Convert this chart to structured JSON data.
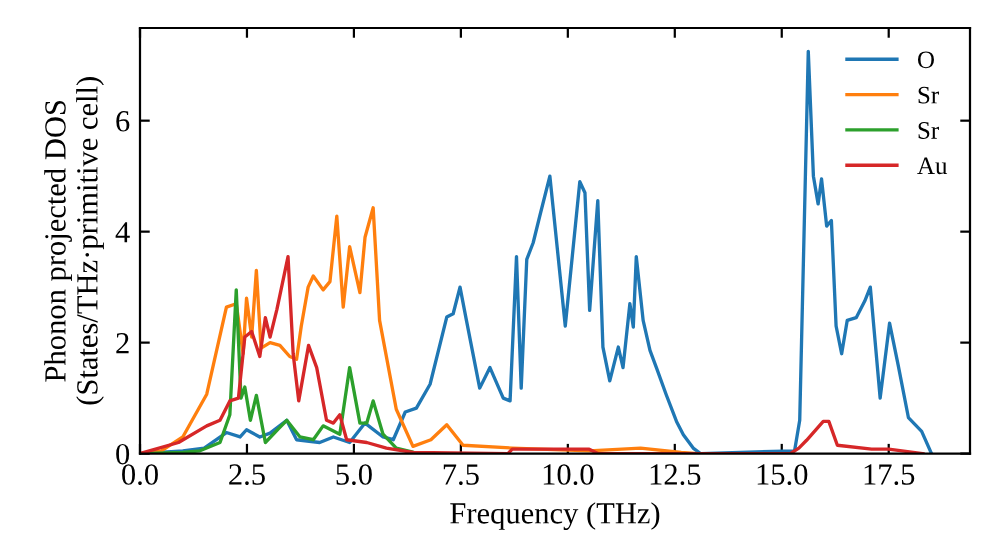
{
  "chart_data": {
    "type": "line",
    "xlabel": "Frequency (THz)",
    "ylabel": "Phonon projected DOS\n(States/THz·primitive cell)",
    "xlim": [
      0,
      19.4
    ],
    "ylim": [
      0,
      7.67
    ],
    "xticks": [
      {
        "value": 0,
        "label": "0.0"
      },
      {
        "value": 2.5,
        "label": "2.5"
      },
      {
        "value": 5,
        "label": "5.0"
      },
      {
        "value": 7.5,
        "label": "7.5"
      },
      {
        "value": 10,
        "label": "10.0"
      },
      {
        "value": 12.5,
        "label": "12.5"
      },
      {
        "value": 15,
        "label": "15.0"
      },
      {
        "value": 17.5,
        "label": "17.5"
      }
    ],
    "yticks": [
      0,
      2,
      4,
      6
    ],
    "grid": false,
    "legend": "top right",
    "marker": "none",
    "line_style": "solid",
    "series": [
      {
        "name": "O",
        "color": "#1f77b4",
        "x": [
          0,
          1.0,
          1.5,
          2.02,
          2.34,
          2.49,
          2.8,
          3.04,
          3.43,
          3.66,
          4.2,
          4.52,
          4.9,
          5.26,
          5.68,
          5.92,
          6.2,
          6.46,
          6.78,
          7.17,
          7.32,
          7.48,
          7.63,
          7.94,
          8.18,
          8.49,
          8.65,
          8.8,
          8.91,
          9.04,
          9.19,
          9.35,
          9.58,
          9.94,
          10.28,
          10.4,
          10.51,
          10.7,
          10.82,
          10.98,
          11.18,
          11.29,
          11.45,
          11.53,
          11.6,
          11.76,
          11.92,
          12.07,
          12.3,
          12.54,
          12.7,
          12.93,
          13.1,
          15.3,
          15.42,
          15.62,
          15.74,
          15.85,
          15.93,
          16.05,
          16.16,
          16.27,
          16.4,
          16.53,
          16.74,
          16.94,
          17.07,
          17.3,
          17.52,
          17.72,
          17.96,
          18.27,
          18.5
        ],
        "values": [
          0,
          0.05,
          0.1,
          0.38,
          0.3,
          0.43,
          0.3,
          0.37,
          0.6,
          0.25,
          0.2,
          0.3,
          0.2,
          0.55,
          0.3,
          0.25,
          0.75,
          0.82,
          1.25,
          2.46,
          2.52,
          3.0,
          2.4,
          1.18,
          1.55,
          1.0,
          0.95,
          3.55,
          1.18,
          3.5,
          3.8,
          4.3,
          5.0,
          2.3,
          4.9,
          4.7,
          2.58,
          4.56,
          1.92,
          1.31,
          1.92,
          1.55,
          2.7,
          2.28,
          3.55,
          2.4,
          1.86,
          1.55,
          1.06,
          0.58,
          0.34,
          0.1,
          0,
          0.05,
          0.6,
          7.25,
          5.0,
          4.5,
          4.95,
          4.1,
          4.2,
          2.3,
          1.8,
          2.4,
          2.45,
          2.75,
          3.0,
          1.0,
          2.35,
          1.6,
          0.65,
          0.4,
          0
        ]
      },
      {
        "name": "Sr",
        "color": "#ff7f0e",
        "x": [
          0,
          0.5,
          1.0,
          1.56,
          2.02,
          2.25,
          2.41,
          2.49,
          2.61,
          2.72,
          2.83,
          3.04,
          3.27,
          3.5,
          3.66,
          3.77,
          3.93,
          4.05,
          4.28,
          4.44,
          4.6,
          4.75,
          4.9,
          5.14,
          5.26,
          5.45,
          5.6,
          5.99,
          6.38,
          6.8,
          7.17,
          7.55,
          8.7,
          10.5,
          11.7,
          12.65,
          13.0
        ],
        "values": [
          0,
          0.05,
          0.3,
          1.07,
          2.64,
          2.7,
          1.8,
          2.8,
          2.1,
          3.3,
          1.9,
          2.0,
          1.95,
          1.75,
          1.7,
          2.3,
          3.0,
          3.2,
          2.95,
          3.1,
          4.28,
          2.64,
          3.73,
          2.9,
          3.9,
          4.43,
          2.4,
          0.8,
          0.13,
          0.25,
          0.52,
          0.15,
          0.1,
          0.05,
          0.1,
          0.02,
          0
        ]
      },
      {
        "name": "Sr",
        "color": "#2ca02c",
        "x": [
          0,
          1.0,
          1.4,
          1.87,
          2.1,
          2.25,
          2.36,
          2.45,
          2.58,
          2.72,
          2.93,
          3.24,
          3.43,
          3.74,
          4.05,
          4.28,
          4.67,
          4.9,
          5.14,
          5.3,
          5.45,
          5.68,
          5.99,
          6.4,
          7.0
        ],
        "values": [
          0,
          0.02,
          0.05,
          0.2,
          0.7,
          2.95,
          1.0,
          1.2,
          0.6,
          1.05,
          0.2,
          0.45,
          0.6,
          0.3,
          0.25,
          0.5,
          0.35,
          1.55,
          0.55,
          0.55,
          0.95,
          0.35,
          0.1,
          0.02,
          0
        ]
      },
      {
        "name": "Au",
        "color": "#d62728",
        "x": [
          0,
          0.9,
          1.56,
          1.87,
          2.1,
          2.3,
          2.45,
          2.61,
          2.8,
          2.93,
          3.04,
          3.2,
          3.46,
          3.58,
          3.71,
          3.94,
          4.13,
          4.36,
          4.52,
          4.67,
          4.83,
          5.3,
          5.76,
          6.38,
          8.6,
          8.7,
          10.5,
          10.7,
          15.2,
          15.4,
          15.58,
          15.97,
          16.1,
          16.3,
          17.1,
          17.5,
          18.3
        ],
        "values": [
          0,
          0.2,
          0.5,
          0.6,
          0.95,
          1.0,
          2.1,
          2.2,
          1.75,
          2.45,
          2.1,
          2.6,
          3.55,
          1.8,
          0.95,
          1.95,
          1.55,
          0.6,
          0.55,
          0.7,
          0.25,
          0.2,
          0.1,
          0.02,
          0,
          0.08,
          0.08,
          0,
          0,
          0.1,
          0.24,
          0.58,
          0.58,
          0.15,
          0.08,
          0.08,
          0
        ]
      }
    ]
  }
}
